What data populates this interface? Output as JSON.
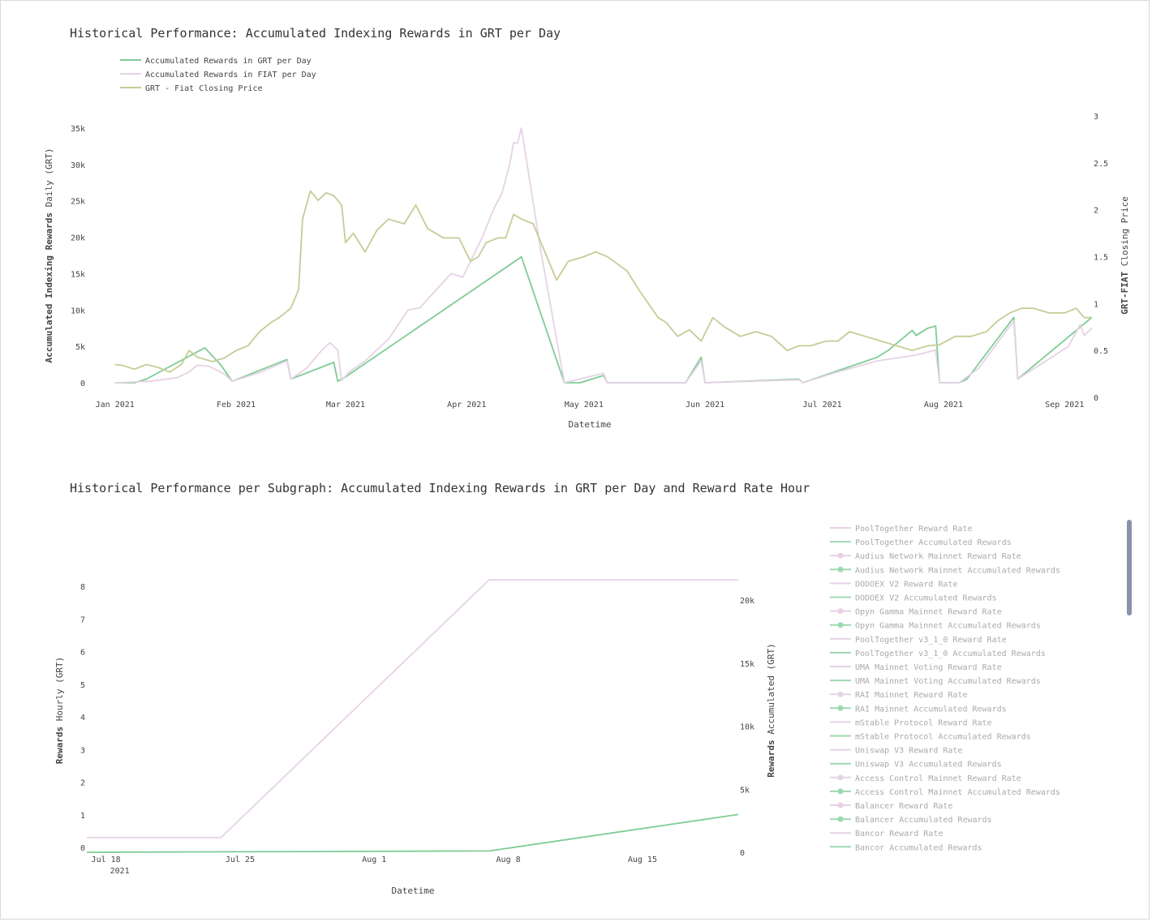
{
  "chart_data": [
    {
      "type": "line",
      "title": "Historical Performance: Accumulated Indexing Rewards in GRT per Day",
      "xlabel": "Datetime",
      "ylabel_bold": "Accumulated Indexing Rewards",
      "ylabel_rest": " Daily (GRT)",
      "y2label_bold": "GRT-FIAT",
      "y2label_rest": " Closing Price",
      "xlim": [
        "2020-12-25",
        "2021-09-08"
      ],
      "ylim": [
        0,
        35000
      ],
      "y2lim": [
        0,
        3
      ],
      "x_ticks": [
        "Jan 2021",
        "Feb 2021",
        "Mar 2021",
        "Apr 2021",
        "May 2021",
        "Jun 2021",
        "Jul 2021",
        "Aug 2021",
        "Sep 2021"
      ],
      "y_ticks": [
        "0",
        "5k",
        "10k",
        "15k",
        "20k",
        "25k",
        "30k",
        "35k"
      ],
      "y2_ticks": [
        "0",
        "0.5",
        "1",
        "1.5",
        "2",
        "2.5",
        "3"
      ],
      "legend_position": "top-left",
      "series": [
        {
          "name": "Accumulated Rewards in GRT per Day",
          "axis": "y",
          "color": "#7fcc96",
          "points": [
            [
              "2021-01-01",
              0
            ],
            [
              "2021-01-06",
              0
            ],
            [
              "2021-01-09",
              500
            ],
            [
              "2021-01-24",
              4800
            ],
            [
              "2021-01-28",
              2500
            ],
            [
              "2021-01-31",
              200
            ],
            [
              "2021-02-14",
              3200
            ],
            [
              "2021-02-15",
              500
            ],
            [
              "2021-02-26",
              2800
            ],
            [
              "2021-02-27",
              200
            ],
            [
              "2021-03-01",
              800
            ],
            [
              "2021-04-15",
              17300
            ],
            [
              "2021-04-26",
              0
            ],
            [
              "2021-04-30",
              0
            ],
            [
              "2021-05-06",
              1000
            ],
            [
              "2021-05-07",
              0
            ],
            [
              "2021-05-27",
              0
            ],
            [
              "2021-05-31",
              3500
            ],
            [
              "2021-06-01",
              0
            ],
            [
              "2021-06-25",
              500
            ],
            [
              "2021-06-26",
              0
            ],
            [
              "2021-07-15",
              3500
            ],
            [
              "2021-07-18",
              4500
            ],
            [
              "2021-07-24",
              7200
            ],
            [
              "2021-07-25",
              6500
            ],
            [
              "2021-07-28",
              7500
            ],
            [
              "2021-07-30",
              7800
            ],
            [
              "2021-07-31",
              0
            ],
            [
              "2021-08-05",
              0
            ],
            [
              "2021-08-07",
              500
            ],
            [
              "2021-08-19",
              9000
            ],
            [
              "2021-08-20",
              500
            ],
            [
              "2021-09-08",
              9000
            ]
          ]
        },
        {
          "name": "Accumulated Rewards in FIAT per Day",
          "axis": "y",
          "color": "#e6d2e6",
          "points": [
            [
              "2021-01-01",
              0
            ],
            [
              "2021-01-10",
              200
            ],
            [
              "2021-01-17",
              700
            ],
            [
              "2021-01-20",
              1500
            ],
            [
              "2021-01-22",
              2400
            ],
            [
              "2021-01-25",
              2300
            ],
            [
              "2021-01-29",
              1200
            ],
            [
              "2021-01-31",
              200
            ],
            [
              "2021-02-07",
              1400
            ],
            [
              "2021-02-14",
              3000
            ],
            [
              "2021-02-15",
              500
            ],
            [
              "2021-02-19",
              2000
            ],
            [
              "2021-02-23",
              4500
            ],
            [
              "2021-02-25",
              5500
            ],
            [
              "2021-02-27",
              4500
            ],
            [
              "2021-02-28",
              300
            ],
            [
              "2021-03-02",
              1500
            ],
            [
              "2021-03-06",
              3000
            ],
            [
              "2021-03-12",
              6000
            ],
            [
              "2021-03-17",
              10000
            ],
            [
              "2021-03-20",
              10300
            ],
            [
              "2021-03-28",
              15000
            ],
            [
              "2021-03-31",
              14500
            ],
            [
              "2021-04-05",
              20000
            ],
            [
              "2021-04-08",
              24000
            ],
            [
              "2021-04-10",
              26000
            ],
            [
              "2021-04-12",
              30000
            ],
            [
              "2021-04-13",
              33000
            ],
            [
              "2021-04-14",
              32900
            ],
            [
              "2021-04-15",
              35000
            ],
            [
              "2021-04-20",
              18000
            ],
            [
              "2021-04-26",
              0
            ],
            [
              "2021-05-06",
              1300
            ],
            [
              "2021-05-07",
              0
            ],
            [
              "2021-05-27",
              0
            ],
            [
              "2021-05-31",
              3000
            ],
            [
              "2021-06-01",
              0
            ],
            [
              "2021-06-25",
              400
            ],
            [
              "2021-06-26",
              0
            ],
            [
              "2021-07-05",
              1500
            ],
            [
              "2021-07-15",
              3000
            ],
            [
              "2021-07-25",
              3800
            ],
            [
              "2021-07-30",
              4500
            ],
            [
              "2021-07-31",
              0
            ],
            [
              "2021-08-05",
              0
            ],
            [
              "2021-08-10",
              2000
            ],
            [
              "2021-08-19",
              8500
            ],
            [
              "2021-08-20",
              500
            ],
            [
              "2021-09-02",
              5000
            ],
            [
              "2021-09-05",
              8000
            ],
            [
              "2021-09-06",
              6500
            ],
            [
              "2021-09-08",
              7500
            ]
          ]
        },
        {
          "name": "GRT - Fiat Closing Price",
          "axis": "y2",
          "color": "#c6cc96",
          "points": [
            [
              "2021-01-01",
              0.35
            ],
            [
              "2021-01-03",
              0.34
            ],
            [
              "2021-01-06",
              0.3
            ],
            [
              "2021-01-09",
              0.35
            ],
            [
              "2021-01-12",
              0.32
            ],
            [
              "2021-01-15",
              0.27
            ],
            [
              "2021-01-18",
              0.35
            ],
            [
              "2021-01-20",
              0.5
            ],
            [
              "2021-01-22",
              0.43
            ],
            [
              "2021-01-26",
              0.38
            ],
            [
              "2021-01-29",
              0.42
            ],
            [
              "2021-02-01",
              0.5
            ],
            [
              "2021-02-04",
              0.55
            ],
            [
              "2021-02-07",
              0.7
            ],
            [
              "2021-02-10",
              0.8
            ],
            [
              "2021-02-12",
              0.85
            ],
            [
              "2021-02-15",
              0.95
            ],
            [
              "2021-02-17",
              1.15
            ],
            [
              "2021-02-18",
              1.9
            ],
            [
              "2021-02-20",
              2.2
            ],
            [
              "2021-02-22",
              2.1
            ],
            [
              "2021-02-24",
              2.18
            ],
            [
              "2021-02-26",
              2.15
            ],
            [
              "2021-02-28",
              2.05
            ],
            [
              "2021-03-01",
              1.65
            ],
            [
              "2021-03-03",
              1.75
            ],
            [
              "2021-03-06",
              1.55
            ],
            [
              "2021-03-09",
              1.78
            ],
            [
              "2021-03-12",
              1.9
            ],
            [
              "2021-03-16",
              1.85
            ],
            [
              "2021-03-19",
              2.05
            ],
            [
              "2021-03-22",
              1.8
            ],
            [
              "2021-03-26",
              1.7
            ],
            [
              "2021-03-30",
              1.7
            ],
            [
              "2021-04-02",
              1.45
            ],
            [
              "2021-04-04",
              1.5
            ],
            [
              "2021-04-06",
              1.65
            ],
            [
              "2021-04-09",
              1.7
            ],
            [
              "2021-04-11",
              1.7
            ],
            [
              "2021-04-13",
              1.95
            ],
            [
              "2021-04-15",
              1.9
            ],
            [
              "2021-04-18",
              1.85
            ],
            [
              "2021-04-24",
              1.25
            ],
            [
              "2021-04-27",
              1.45
            ],
            [
              "2021-05-01",
              1.5
            ],
            [
              "2021-05-04",
              1.55
            ],
            [
              "2021-05-07",
              1.5
            ],
            [
              "2021-05-12",
              1.35
            ],
            [
              "2021-05-15",
              1.15
            ],
            [
              "2021-05-20",
              0.85
            ],
            [
              "2021-05-22",
              0.8
            ],
            [
              "2021-05-25",
              0.65
            ],
            [
              "2021-05-28",
              0.72
            ],
            [
              "2021-05-31",
              0.6
            ],
            [
              "2021-06-03",
              0.85
            ],
            [
              "2021-06-06",
              0.75
            ],
            [
              "2021-06-10",
              0.65
            ],
            [
              "2021-06-14",
              0.7
            ],
            [
              "2021-06-18",
              0.65
            ],
            [
              "2021-06-22",
              0.5
            ],
            [
              "2021-06-25",
              0.55
            ],
            [
              "2021-06-28",
              0.55
            ],
            [
              "2021-07-02",
              0.6
            ],
            [
              "2021-07-05",
              0.6
            ],
            [
              "2021-07-08",
              0.7
            ],
            [
              "2021-07-12",
              0.65
            ],
            [
              "2021-07-16",
              0.6
            ],
            [
              "2021-07-20",
              0.55
            ],
            [
              "2021-07-24",
              0.5
            ],
            [
              "2021-07-28",
              0.55
            ],
            [
              "2021-07-31",
              0.56
            ],
            [
              "2021-08-04",
              0.65
            ],
            [
              "2021-08-08",
              0.65
            ],
            [
              "2021-08-12",
              0.7
            ],
            [
              "2021-08-15",
              0.82
            ],
            [
              "2021-08-18",
              0.9
            ],
            [
              "2021-08-21",
              0.95
            ],
            [
              "2021-08-24",
              0.95
            ],
            [
              "2021-08-28",
              0.9
            ],
            [
              "2021-09-01",
              0.9
            ],
            [
              "2021-09-04",
              0.95
            ],
            [
              "2021-09-06",
              0.85
            ],
            [
              "2021-09-08",
              0.85
            ]
          ]
        }
      ]
    },
    {
      "type": "line",
      "title": "Historical Performance per Subgraph: Accumulated Indexing Rewards in GRT per Day and Reward Rate Hour",
      "xlabel": "Datetime",
      "ylabel_bold": "Rewards",
      "ylabel_rest": " Hourly (GRT)",
      "y2label_bold": "Rewards",
      "y2label_rest": " Accumulated (GRT)",
      "xlim": [
        "2021-07-17",
        "2021-08-20"
      ],
      "ylim": [
        0,
        8
      ],
      "y2lim": [
        0,
        20000
      ],
      "x_ticks": [
        "Jul 18",
        "Jul 25",
        "Aug 1",
        "Aug 8",
        "Aug 15"
      ],
      "x_tick_sub": "2021",
      "y_ticks": [
        "0",
        "1",
        "2",
        "3",
        "4",
        "5",
        "6",
        "7",
        "8"
      ],
      "y2_ticks": [
        "0",
        "5k",
        "10k",
        "15k",
        "20k"
      ],
      "legend_position": "right",
      "series": [
        {
          "name": "PoolTogether Reward Rate",
          "axis": "y",
          "color": "#e6d2e6",
          "points": [
            [
              "2021-07-17",
              0.3
            ],
            [
              "2021-07-24",
              0.3
            ],
            [
              "2021-08-07",
              8.2
            ],
            [
              "2021-08-20",
              8.2
            ]
          ]
        },
        {
          "name": "PoolTogether Accumulated Rewards",
          "axis": "y2",
          "color": "#7fcc96",
          "points": [
            [
              "2021-07-17",
              0
            ],
            [
              "2021-08-07",
              100
            ],
            [
              "2021-08-20",
              3000
            ]
          ]
        }
      ],
      "legend": [
        {
          "label": "PoolTogether Reward Rate",
          "color": "#e6d2e6",
          "marker": false
        },
        {
          "label": "PoolTogether Accumulated Rewards",
          "color": "#9ed8b0",
          "marker": false
        },
        {
          "label": "Audius Network Mainnet Reward Rate",
          "color": "#e6d2e6",
          "marker": true
        },
        {
          "label": "Audius Network Mainnet Accumulated Rewards",
          "color": "#9ed8b0",
          "marker": true
        },
        {
          "label": "DODOEX V2 Reward Rate",
          "color": "#e6d2e6",
          "marker": false
        },
        {
          "label": "DODOEX V2 Accumulated Rewards",
          "color": "#9ed8b0",
          "marker": false
        },
        {
          "label": "Opyn Gamma Mainnet Reward Rate",
          "color": "#e6d2e6",
          "marker": true
        },
        {
          "label": "Opyn Gamma Mainnet Accumulated Rewards",
          "color": "#9ed8b0",
          "marker": true
        },
        {
          "label": "PoolTogether v3_1_0 Reward Rate",
          "color": "#e6d2e6",
          "marker": false
        },
        {
          "label": "PoolTogether v3_1_0 Accumulated Rewards",
          "color": "#9ed8b0",
          "marker": false
        },
        {
          "label": "UMA Mainnet Voting Reward Rate",
          "color": "#e6d2e6",
          "marker": false
        },
        {
          "label": "UMA Mainnet Voting Accumulated Rewards",
          "color": "#9ed8b0",
          "marker": false
        },
        {
          "label": "RAI Mainnet Reward Rate",
          "color": "#e6d2e6",
          "marker": true
        },
        {
          "label": "RAI Mainnet Accumulated Rewards",
          "color": "#9ed8b0",
          "marker": true
        },
        {
          "label": "mStable Protocol Reward Rate",
          "color": "#e6d2e6",
          "marker": false
        },
        {
          "label": "mStable Protocol Accumulated Rewards",
          "color": "#9ed8b0",
          "marker": false
        },
        {
          "label": "Uniswap V3 Reward Rate",
          "color": "#e6d2e6",
          "marker": false
        },
        {
          "label": "Uniswap V3 Accumulated Rewards",
          "color": "#9ed8b0",
          "marker": false
        },
        {
          "label": "Access Control Mainnet Reward Rate",
          "color": "#e6d2e6",
          "marker": true
        },
        {
          "label": "Access Control Mainnet Accumulated Rewards",
          "color": "#9ed8b0",
          "marker": true
        },
        {
          "label": "Balancer Reward Rate",
          "color": "#e6d2e6",
          "marker": true
        },
        {
          "label": "Balancer Accumulated Rewards",
          "color": "#9ed8b0",
          "marker": true
        },
        {
          "label": "Bancor Reward Rate",
          "color": "#e6d2e6",
          "marker": false
        },
        {
          "label": "Bancor Accumulated Rewards",
          "color": "#9ed8b0",
          "marker": false
        }
      ]
    }
  ]
}
